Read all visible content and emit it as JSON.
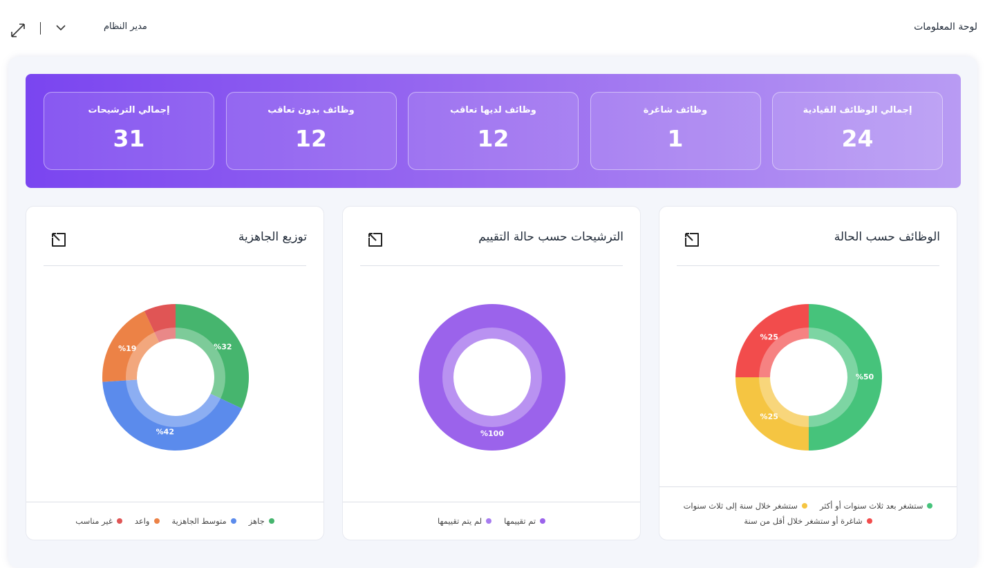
{
  "header": {
    "title": "لوحة المعلومات",
    "user": "مدير النظام"
  },
  "stats": [
    {
      "label": "إجمالي الوظائف القيادية",
      "value": 24
    },
    {
      "label": "وظائف شاغرة",
      "value": 1
    },
    {
      "label": "وظائف لديها تعاقب",
      "value": 12
    },
    {
      "label": "وظائف بدون تعاقب",
      "value": 12
    },
    {
      "label": "إجمالي الترشيحات",
      "value": 31
    }
  ],
  "charts": [
    {
      "type": "donut",
      "title": "الوظائف حسب الحالة",
      "categories": [
        "ستشغر بعد ثلاث سنوات أو أكثر",
        "ستشغر خلال سنة إلى ثلاث سنوات",
        "شاغرة أو ستشغر خلال أقل من سنة"
      ],
      "colors": [
        "#46c37b",
        "#f5c542",
        "#f24c4c"
      ],
      "values": [
        50,
        25,
        25
      ],
      "value_labels": [
        "%50",
        "%25",
        "%25"
      ]
    },
    {
      "type": "donut",
      "title": "الترشيحات حسب حالة التقييم",
      "categories": [
        "تم تقييمها",
        "لم يتم تقييمها"
      ],
      "colors": [
        "#9b63eb",
        "#a77cf0"
      ],
      "values": [
        100,
        0
      ],
      "value_labels": [
        "%100",
        null
      ]
    },
    {
      "type": "donut",
      "title": "توزيع الجاهزية",
      "categories": [
        "جاهز",
        "متوسط الجاهزية",
        "واعد",
        "غير مناسب"
      ],
      "colors": [
        "#46b56e",
        "#5b8bec",
        "#ec8246",
        "#e05555"
      ],
      "values": [
        32,
        42,
        19,
        7
      ],
      "value_labels": [
        "%32",
        "%42",
        "%19",
        null
      ]
    }
  ]
}
